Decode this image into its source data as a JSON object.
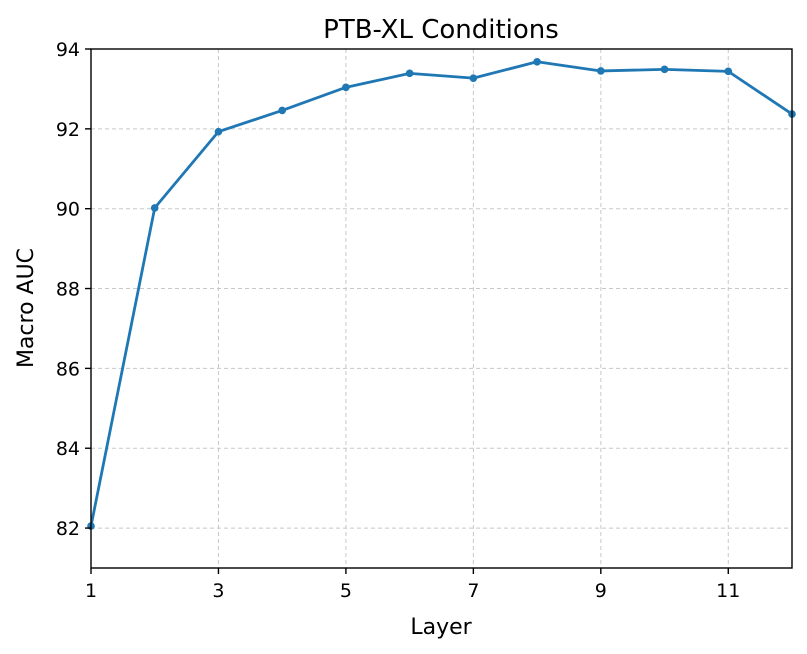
{
  "chart_data": {
    "type": "line",
    "title": "PTB-XL Conditions",
    "xlabel": "Layer",
    "ylabel": "Macro AUC",
    "xlim": [
      1,
      12
    ],
    "ylim": [
      81,
      94
    ],
    "xticks": [
      1,
      3,
      5,
      7,
      9,
      11
    ],
    "yticks": [
      82,
      84,
      86,
      88,
      90,
      92,
      94
    ],
    "grid": true,
    "series": [
      {
        "color": "#1f77b4",
        "x": [
          1,
          2,
          3,
          4,
          5,
          6,
          7,
          8,
          9,
          10,
          11,
          12
        ],
        "y": [
          82.05,
          90.02,
          91.93,
          92.46,
          93.04,
          93.39,
          93.27,
          93.68,
          93.45,
          93.49,
          93.44,
          92.37
        ]
      }
    ]
  }
}
